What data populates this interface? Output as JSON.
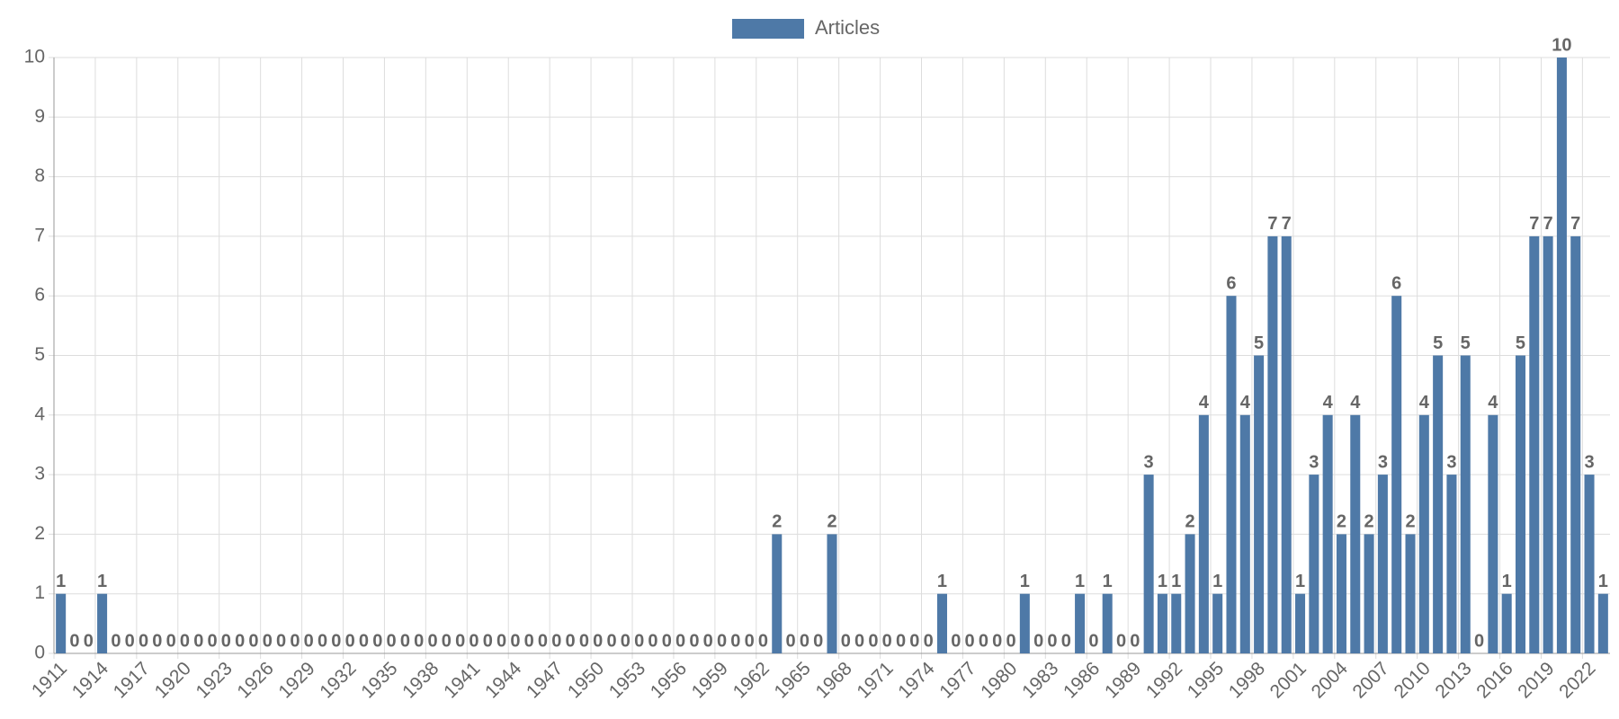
{
  "chart_data": {
    "type": "bar",
    "categories": [
      "1911",
      null,
      null,
      "1914",
      null,
      null,
      "1917",
      null,
      null,
      "1920",
      null,
      null,
      "1923",
      null,
      null,
      "1926",
      null,
      null,
      "1929",
      null,
      null,
      "1932",
      null,
      null,
      "1935",
      null,
      null,
      "1938",
      null,
      null,
      "1941",
      null,
      null,
      "1944",
      null,
      null,
      "1947",
      null,
      null,
      "1950",
      null,
      null,
      "1953",
      null,
      null,
      "1956",
      null,
      null,
      "1959",
      null,
      null,
      "1962",
      null,
      null,
      "1965",
      null,
      null,
      "1968",
      null,
      null,
      "1971",
      null,
      null,
      "1974",
      null,
      null,
      "1977",
      null,
      null,
      "1980",
      null,
      null,
      "1983",
      null,
      null,
      "1986",
      null,
      null,
      "1989",
      null,
      null,
      "1992",
      null,
      null,
      "1995",
      null,
      null,
      "1998",
      null,
      null,
      "2001",
      null,
      null,
      "2004",
      null,
      null,
      "2007",
      null,
      null,
      "2010",
      null,
      null,
      "2013",
      null,
      null,
      "2016",
      null,
      null,
      "2019",
      null,
      null,
      "2022",
      null
    ],
    "series": [
      {
        "name": "Articles",
        "color": "#4e79a7",
        "values": [
          1,
          0,
          0,
          1,
          0,
          0,
          0,
          0,
          0,
          0,
          0,
          0,
          0,
          0,
          0,
          0,
          0,
          0,
          0,
          0,
          0,
          0,
          0,
          0,
          0,
          0,
          0,
          0,
          0,
          0,
          0,
          0,
          0,
          0,
          0,
          0,
          0,
          0,
          0,
          0,
          0,
          0,
          0,
          0,
          0,
          0,
          0,
          0,
          0,
          0,
          0,
          0,
          2,
          0,
          0,
          0,
          2,
          0,
          0,
          0,
          0,
          0,
          0,
          0,
          1,
          0,
          0,
          0,
          0,
          0,
          1,
          0,
          0,
          0,
          1,
          0,
          1,
          0,
          0,
          3,
          1,
          1,
          2,
          4,
          1,
          6,
          4,
          5,
          7,
          7,
          1,
          3,
          4,
          2,
          4,
          2,
          3,
          6,
          2,
          4,
          5,
          3,
          5,
          0,
          4,
          1,
          5,
          7,
          7,
          10,
          7,
          3,
          1
        ]
      }
    ],
    "ylim": [
      0,
      10
    ],
    "yticks": [
      0,
      1,
      2,
      3,
      4,
      5,
      6,
      7,
      8,
      9,
      10
    ],
    "grid": true,
    "legend": "top"
  }
}
